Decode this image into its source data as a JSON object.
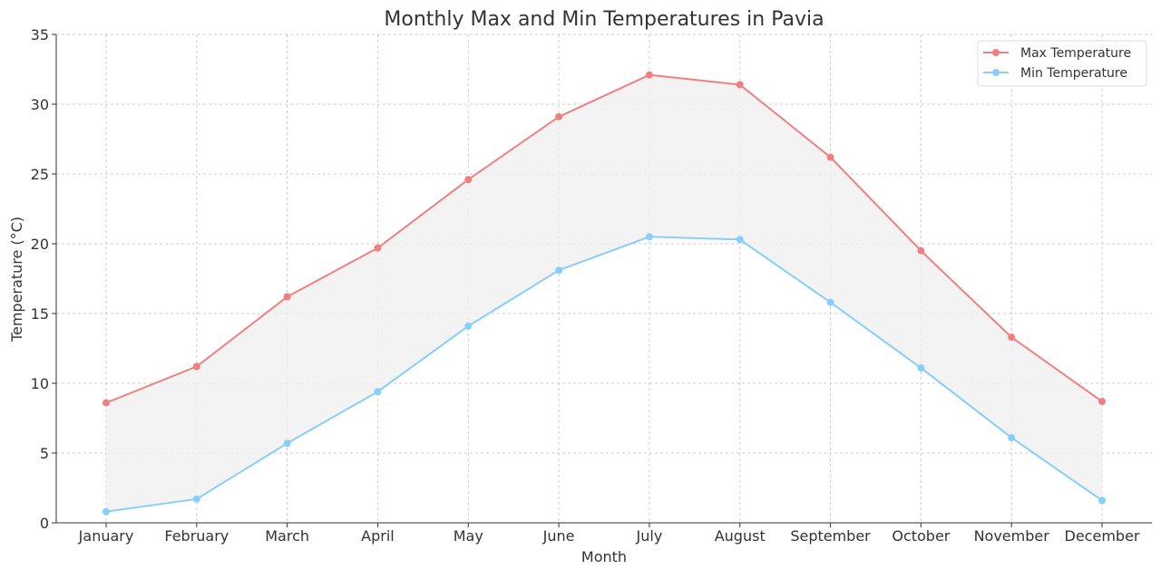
{
  "chart_data": {
    "type": "line",
    "title": "Monthly Max and Min Temperatures in Pavia",
    "xlabel": "Month",
    "ylabel": "Temperature (°C)",
    "categories": [
      "January",
      "February",
      "March",
      "April",
      "May",
      "June",
      "July",
      "August",
      "September",
      "October",
      "November",
      "December"
    ],
    "ylim": [
      0,
      35
    ],
    "yticks": [
      0,
      5,
      10,
      15,
      20,
      25,
      30,
      35
    ],
    "grid": true,
    "legend": "top-right",
    "fill_between": {
      "color": "#f0f0f0"
    },
    "series": [
      {
        "name": "Max Temperature",
        "color": "#f08080",
        "values": [
          8.6,
          11.2,
          16.2,
          19.7,
          24.6,
          29.1,
          32.1,
          31.4,
          26.2,
          19.5,
          13.3,
          8.7
        ]
      },
      {
        "name": "Min Temperature",
        "color": "#87cefa",
        "values": [
          0.8,
          1.7,
          5.7,
          9.4,
          14.1,
          18.1,
          20.5,
          20.3,
          15.8,
          11.1,
          6.1,
          1.6
        ]
      }
    ]
  }
}
